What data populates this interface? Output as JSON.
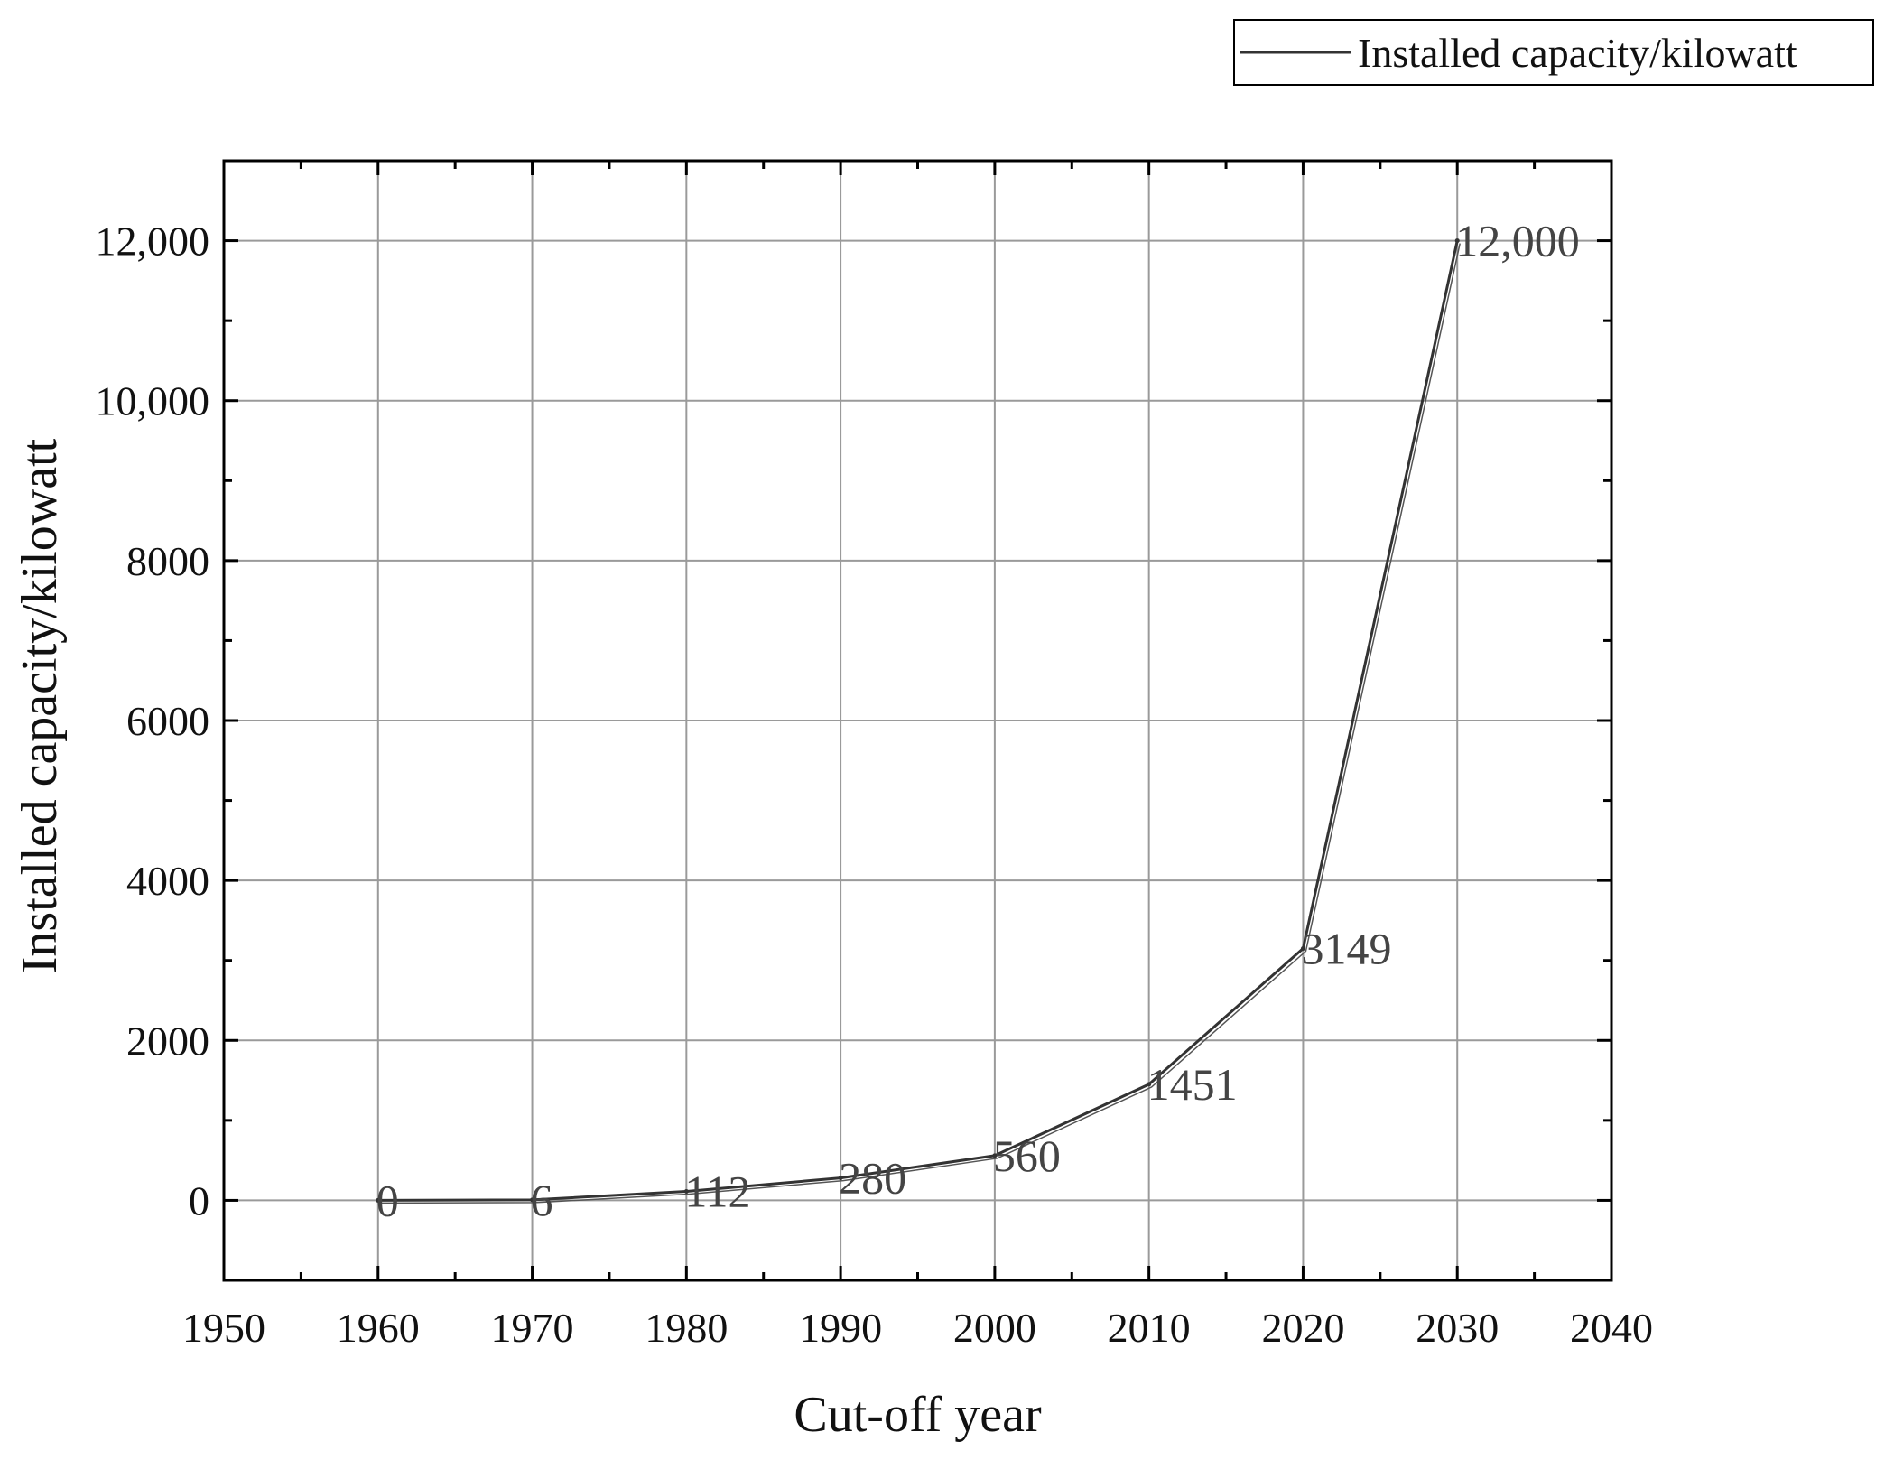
{
  "chart_data": {
    "type": "line",
    "title": "",
    "xlabel": "Cut-off year",
    "ylabel": "Installed capacity/kilowatt",
    "xlim": [
      1950,
      2040
    ],
    "ylim": [
      -1000,
      13000
    ],
    "x_ticks": [
      1950,
      1960,
      1970,
      1980,
      1990,
      2000,
      2010,
      2020,
      2030,
      2040
    ],
    "x_tick_labels": [
      "1950",
      "1960",
      "1970",
      "1980",
      "1990",
      "2000",
      "2010",
      "2020",
      "2030",
      "2040"
    ],
    "y_ticks": [
      0,
      2000,
      4000,
      6000,
      8000,
      10000,
      12000
    ],
    "y_tick_labels": [
      "0",
      "2000",
      "4000",
      "6000",
      "8000",
      "10,000",
      "12,000"
    ],
    "grid": true,
    "legend": {
      "position": "top-right",
      "entries": [
        "Installed capacity/kilowatt"
      ]
    },
    "series": [
      {
        "name": "Installed capacity/kilowatt",
        "x": [
          1960,
          1970,
          1980,
          1990,
          2000,
          2010,
          2020,
          2030
        ],
        "values": [
          0,
          6,
          112,
          280,
          560,
          1451,
          3149,
          12000
        ],
        "labels": [
          "0",
          "6",
          "112",
          "280",
          "560",
          "1451",
          "3149",
          "12,000"
        ],
        "color": "#333333"
      }
    ]
  }
}
